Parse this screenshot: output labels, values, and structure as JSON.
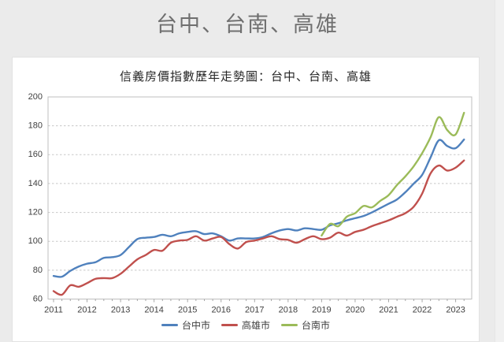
{
  "page": {
    "title": "台中、台南、高雄",
    "background": "#ebebeb"
  },
  "chart_data": {
    "type": "line",
    "title": "信義房價指數歷年走勢圖：台中、台南、高雄",
    "xlabel": "",
    "ylabel": "",
    "xlim": [
      2011,
      2023.5
    ],
    "ylim": [
      60,
      200
    ],
    "y_ticks": [
      60,
      80,
      100,
      120,
      140,
      160,
      180,
      200
    ],
    "x_tick_labels": [
      "2011",
      "2012",
      "2013",
      "2014",
      "2015",
      "2016",
      "2017",
      "2018",
      "2019",
      "2020",
      "2021",
      "2022",
      "2023"
    ],
    "grid": "horizontal-dashed",
    "legend_position": "bottom-center",
    "x_step": 0.25,
    "colors": {
      "grid": "#c8c8c8",
      "plot_border": "#bfbfbf",
      "tick": "#a6a6a6",
      "axis_text": "#404040"
    },
    "series": [
      {
        "key": "taichung",
        "name": "台中市",
        "color": "#4F81BD",
        "x_start": 2011.0,
        "values": [
          76,
          75.5,
          79.5,
          82.5,
          84.5,
          85.5,
          88.5,
          89,
          90.5,
          96,
          101.5,
          102.5,
          103,
          104.5,
          103.5,
          105.5,
          106.5,
          107,
          105,
          105.5,
          103.5,
          100.5,
          102,
          102,
          102,
          103,
          105.5,
          107.5,
          108.5,
          107.5,
          109,
          108.5,
          108,
          111,
          112.5,
          114.5,
          116,
          117.5,
          120,
          123,
          126,
          129,
          134,
          140,
          146,
          158,
          170,
          166,
          164.5,
          170.5
        ]
      },
      {
        "key": "kaohsiung",
        "name": "高雄市",
        "color": "#C0504D",
        "x_start": 2011.0,
        "values": [
          65.5,
          63,
          69.5,
          68.5,
          71,
          74,
          74.5,
          74.5,
          77.5,
          82.5,
          87.5,
          90.5,
          94,
          93.5,
          99,
          100.5,
          101,
          103.5,
          100.5,
          102,
          103,
          98,
          95,
          99.5,
          100.5,
          102,
          103.5,
          101.5,
          101,
          99,
          101.5,
          103.5,
          101.5,
          102.5,
          106,
          104,
          106.5,
          108,
          110.5,
          112.5,
          114.5,
          117,
          119.5,
          124,
          133,
          147,
          152.5,
          149,
          151,
          156
        ]
      },
      {
        "key": "tainan",
        "name": "台南市",
        "color": "#9BBB59",
        "x_start": 2019.0,
        "values": [
          104,
          112,
          110.5,
          117,
          119.5,
          124.5,
          123.5,
          128,
          132,
          139,
          145,
          152,
          161,
          172,
          186,
          177,
          174,
          189
        ]
      }
    ]
  }
}
